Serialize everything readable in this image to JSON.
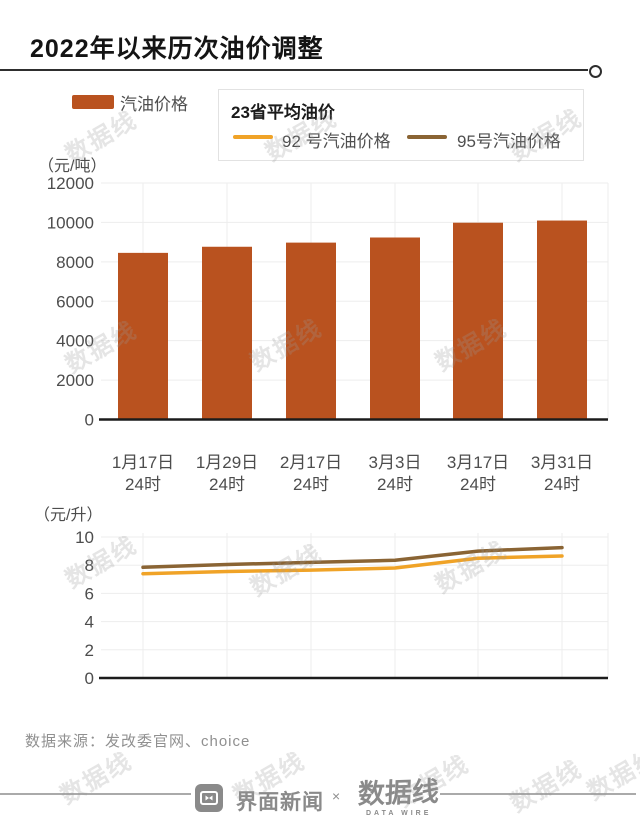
{
  "title": "2022年以来历次油价调整",
  "legend": {
    "bar_label": "汽油价格",
    "box_title": "23省平均油价",
    "line92_label": "92 号汽油价格",
    "line95_label": "95号汽油价格"
  },
  "colors": {
    "bar": "#b9521f",
    "line92": "#f0a327",
    "line95": "#8a6434",
    "axis": "#1c1c1c",
    "grid": "#ededed",
    "tick_text": "#4d4d4d"
  },
  "chart_data": [
    {
      "type": "bar",
      "title": "汽油价格",
      "unit_label": "（元/吨）",
      "ylabel": "元/吨",
      "categories": [
        "1月17日",
        "1月29日",
        "2月17日",
        "3月3日",
        "3月17日",
        "3月31日"
      ],
      "category_sublabel": "24时",
      "values": [
        8455,
        8765,
        8975,
        9235,
        9985,
        10095
      ],
      "yticks": [
        0,
        2000,
        4000,
        6000,
        8000,
        10000,
        12000
      ],
      "ylim": [
        0,
        12000
      ],
      "grid": true,
      "bar_color": "#b9521f"
    },
    {
      "type": "line",
      "title": "23省平均油价",
      "unit_label": "（元/升）",
      "ylabel": "元/升",
      "categories": [
        "1月17日",
        "1月29日",
        "2月17日",
        "3月3日",
        "3月17日",
        "3月31日"
      ],
      "category_sublabel": "24时",
      "series": [
        {
          "name": "92 号汽油价格",
          "color": "#f0a327",
          "values": [
            7.4,
            7.55,
            7.65,
            7.8,
            8.5,
            8.65
          ]
        },
        {
          "name": "95号汽油价格",
          "color": "#8a6434",
          "values": [
            7.85,
            8.05,
            8.2,
            8.35,
            9.0,
            9.25
          ]
        }
      ],
      "yticks": [
        0,
        2,
        4,
        6,
        8,
        10
      ],
      "ylim": [
        0,
        10
      ],
      "grid": true,
      "legend_position": "top"
    }
  ],
  "footer": {
    "source": "数据来源：发改委官网、choice"
  },
  "branding": {
    "jiemian": "界面新闻",
    "times": "×",
    "datawire": "数据线",
    "datawire_en": "DATA WIRE"
  },
  "watermark": "数据线"
}
